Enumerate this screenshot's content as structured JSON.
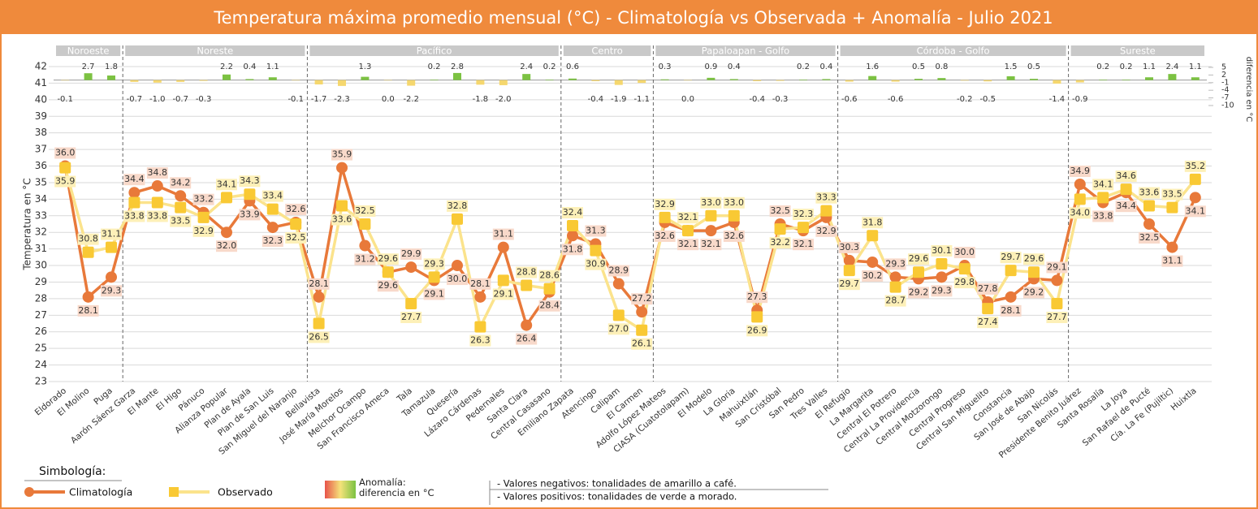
{
  "chart_data": {
    "type": "line",
    "title": "Temperatura máxima promedio mensual (°C)  -   Climatología vs Observada  + Anomalía  - Julio 2021",
    "y_label": "Temperatura en °C",
    "y2_label": "diferencia en °C",
    "groups": [
      {
        "name": "Noroeste",
        "categories": [
          "Eldorado",
          "El Molino",
          "Puga"
        ]
      },
      {
        "name": "Noreste",
        "categories": [
          "Aarón Sáenz Garza",
          "El Mante",
          "El Higo",
          "Pánuco",
          "Alianza Popular",
          "Plan de Ayala",
          "Plan de San Luis",
          "San Miguel del Naranjo"
        ]
      },
      {
        "name": "Pacífico",
        "categories": [
          "Bellavista",
          "José María Morelos",
          "Melchor Ocampo",
          "San Francisco Ameca",
          "Tala",
          "Tamazula",
          "Quesería",
          "Lázaro Cárdenas",
          "Pedernales",
          "Santa Clara",
          "Central Casasano"
        ]
      },
      {
        "name": "Centro",
        "categories": [
          "Emiliano Zapata",
          "Atencingo",
          "Calipam",
          "El Carmen"
        ]
      },
      {
        "name": "Papaloapan - Golfo",
        "categories": [
          "Adolfo López Mateos",
          "CIASA (Cuatotolapam)",
          "El Modelo",
          "La Gloria",
          "Mahuixtlán",
          "San Cristóbal",
          "San Pedro",
          "Tres Valles"
        ]
      },
      {
        "name": "Córdoba - Golfo",
        "categories": [
          "El Refugio",
          "La Margarita",
          "Central El Potrero",
          "Central La Providencia",
          "Central Motzorongo",
          "Central Progreso",
          "Central San Miguelito",
          "Constancia",
          "San José de Abajo",
          "San Nicolás"
        ]
      },
      {
        "name": "Sureste",
        "categories": [
          "Presidente Benito Juárez",
          "Santa Rosalía",
          "La Joya",
          "San Rafael de Pucté",
          "Cía. La Fe (Pujiltic)",
          "Huixtla"
        ]
      }
    ],
    "series": [
      {
        "name": "Climatología",
        "color": "#e8793a",
        "marker": "circle",
        "values": [
          36.0,
          28.1,
          29.3,
          34.4,
          34.8,
          34.2,
          33.2,
          32.0,
          33.9,
          32.3,
          32.6,
          28.1,
          35.9,
          31.2,
          29.6,
          29.9,
          29.1,
          30.0,
          28.1,
          31.1,
          26.4,
          28.4,
          31.8,
          31.3,
          28.9,
          27.2,
          32.6,
          32.1,
          32.1,
          32.6,
          27.3,
          32.5,
          32.1,
          32.9,
          30.3,
          30.2,
          29.3,
          29.2,
          29.3,
          30.0,
          27.8,
          28.1,
          29.2,
          29.1,
          34.9,
          33.8,
          34.4,
          32.5,
          31.1,
          34.1
        ],
        "value_labels": [
          "36.0",
          "28.1",
          "29.3",
          "34.4",
          "34.8",
          "34.2",
          "33.2",
          "32.0",
          "33.9",
          "32.3",
          "32.6",
          "28.1",
          "35.9",
          "31.2",
          "29.6",
          "29.9",
          "29.1",
          "30.0",
          "28.1",
          "31.1",
          "26.4",
          "28.4",
          "31.8",
          "31.3",
          "28.9",
          "27.2",
          "32.6",
          "32.1",
          "32.1",
          "32.6",
          "27.3",
          "32.5",
          "32.1",
          "32.9",
          "30.3",
          "30.2",
          "29.3",
          "29.2",
          "29.3",
          "30.0",
          "27.8",
          "28.1",
          "29.2",
          "29.1",
          "34.9",
          "33.8",
          "34.4",
          "32.5",
          "31.1",
          "34.1"
        ]
      },
      {
        "name": "Observado",
        "color": "#f9c934",
        "line_color": "#fbe38c",
        "marker": "square",
        "values": [
          35.9,
          30.8,
          31.1,
          33.8,
          33.8,
          33.5,
          32.9,
          34.1,
          34.3,
          33.4,
          32.5,
          26.5,
          33.6,
          32.5,
          29.6,
          27.7,
          29.3,
          32.8,
          26.3,
          29.1,
          28.8,
          28.6,
          32.4,
          30.9,
          27.0,
          26.1,
          32.9,
          32.1,
          33.0,
          33.0,
          26.9,
          32.2,
          32.3,
          33.3,
          29.7,
          31.8,
          28.7,
          29.6,
          30.1,
          29.8,
          27.4,
          29.7,
          29.6,
          27.7,
          34.0,
          34.1,
          34.6,
          33.6,
          33.5,
          35.2
        ],
        "value_labels": [
          "35.9",
          "30.8",
          "31.1",
          "33.8",
          "33.8",
          "33.5",
          "32.9",
          "34.1",
          "34.3",
          "33.4",
          "32.5",
          "26.5",
          "33.6",
          "32.5",
          "29.6",
          "27.7",
          "29.3",
          "32.8",
          "26.3",
          "29.1",
          "28.8",
          "28.6",
          "32.4",
          "30.9",
          "27.0",
          "26.1",
          "32.9",
          "32.1",
          "33.0",
          "33.0",
          "26.9",
          "32.2",
          "32.3",
          "33.3",
          "29.7",
          "31.8",
          "28.7",
          "29.6",
          "30.1",
          "29.8",
          "27.4",
          "29.7",
          "29.6",
          "27.7",
          "34.0",
          "34.1",
          "34.6",
          "33.6",
          "33.5",
          "35.2"
        ]
      },
      {
        "name": "Anomalía: diferencia en °C",
        "axis": "y2",
        "color": "#7cc242",
        "negative_color": "#f5d76e",
        "values": [
          -0.1,
          2.7,
          1.8,
          -0.7,
          -1.0,
          -0.7,
          -0.3,
          2.2,
          0.4,
          1.1,
          -0.1,
          -1.7,
          -2.3,
          1.3,
          0.0,
          -2.2,
          0.2,
          2.8,
          -1.8,
          -2.0,
          2.4,
          0.2,
          0.6,
          -0.4,
          -1.9,
          -1.1,
          0.3,
          0.0,
          0.9,
          0.4,
          -0.4,
          -0.3,
          0.2,
          0.4,
          -0.6,
          1.6,
          -0.6,
          0.5,
          0.8,
          -0.2,
          -0.5,
          1.5,
          0.5,
          -1.4,
          -0.9,
          0.2,
          0.2,
          1.1,
          2.4,
          1.1
        ],
        "value_labels": [
          "-0.1",
          "2.7",
          "1.8",
          "-0.7",
          "-1.0",
          "-0.7",
          "-0.3",
          "2.2",
          "0.4",
          "1.1",
          "-0.1",
          "-1.7",
          "-2.3",
          "1.3",
          "0.0",
          "-2.2",
          "0.2",
          "2.8",
          "-1.8",
          "-2.0",
          "2.4",
          "0.2",
          "0.6",
          "-0.4",
          "-1.9",
          "-1.1",
          "0.3",
          "0.0",
          "0.9",
          "0.4",
          "-0.4",
          "-0.3",
          "0.2",
          "0.4",
          "-0.6",
          "1.6",
          "-0.6",
          "0.5",
          "0.8",
          "-0.2",
          "-0.5",
          "1.5",
          "0.5",
          "-1.4",
          "-0.9",
          "0.2",
          "0.2",
          "1.1",
          "2.4",
          "1.1"
        ]
      }
    ],
    "ylim": [
      23,
      42
    ],
    "yticks": [
      23,
      24,
      25,
      26,
      27,
      28,
      29,
      30,
      31,
      32,
      33,
      34,
      35,
      36,
      37,
      38,
      39,
      40,
      41,
      42
    ],
    "y2lim": [
      -10,
      5
    ],
    "y2ticks": [
      5,
      2,
      -1,
      -4,
      -7,
      -10
    ],
    "grid": true,
    "legend_title": "Simbología:",
    "notes": [
      "- Valores negativos: tonalidades de amarillo a café.",
      "- Valores positivos: tonalidades de verde a morado."
    ]
  }
}
